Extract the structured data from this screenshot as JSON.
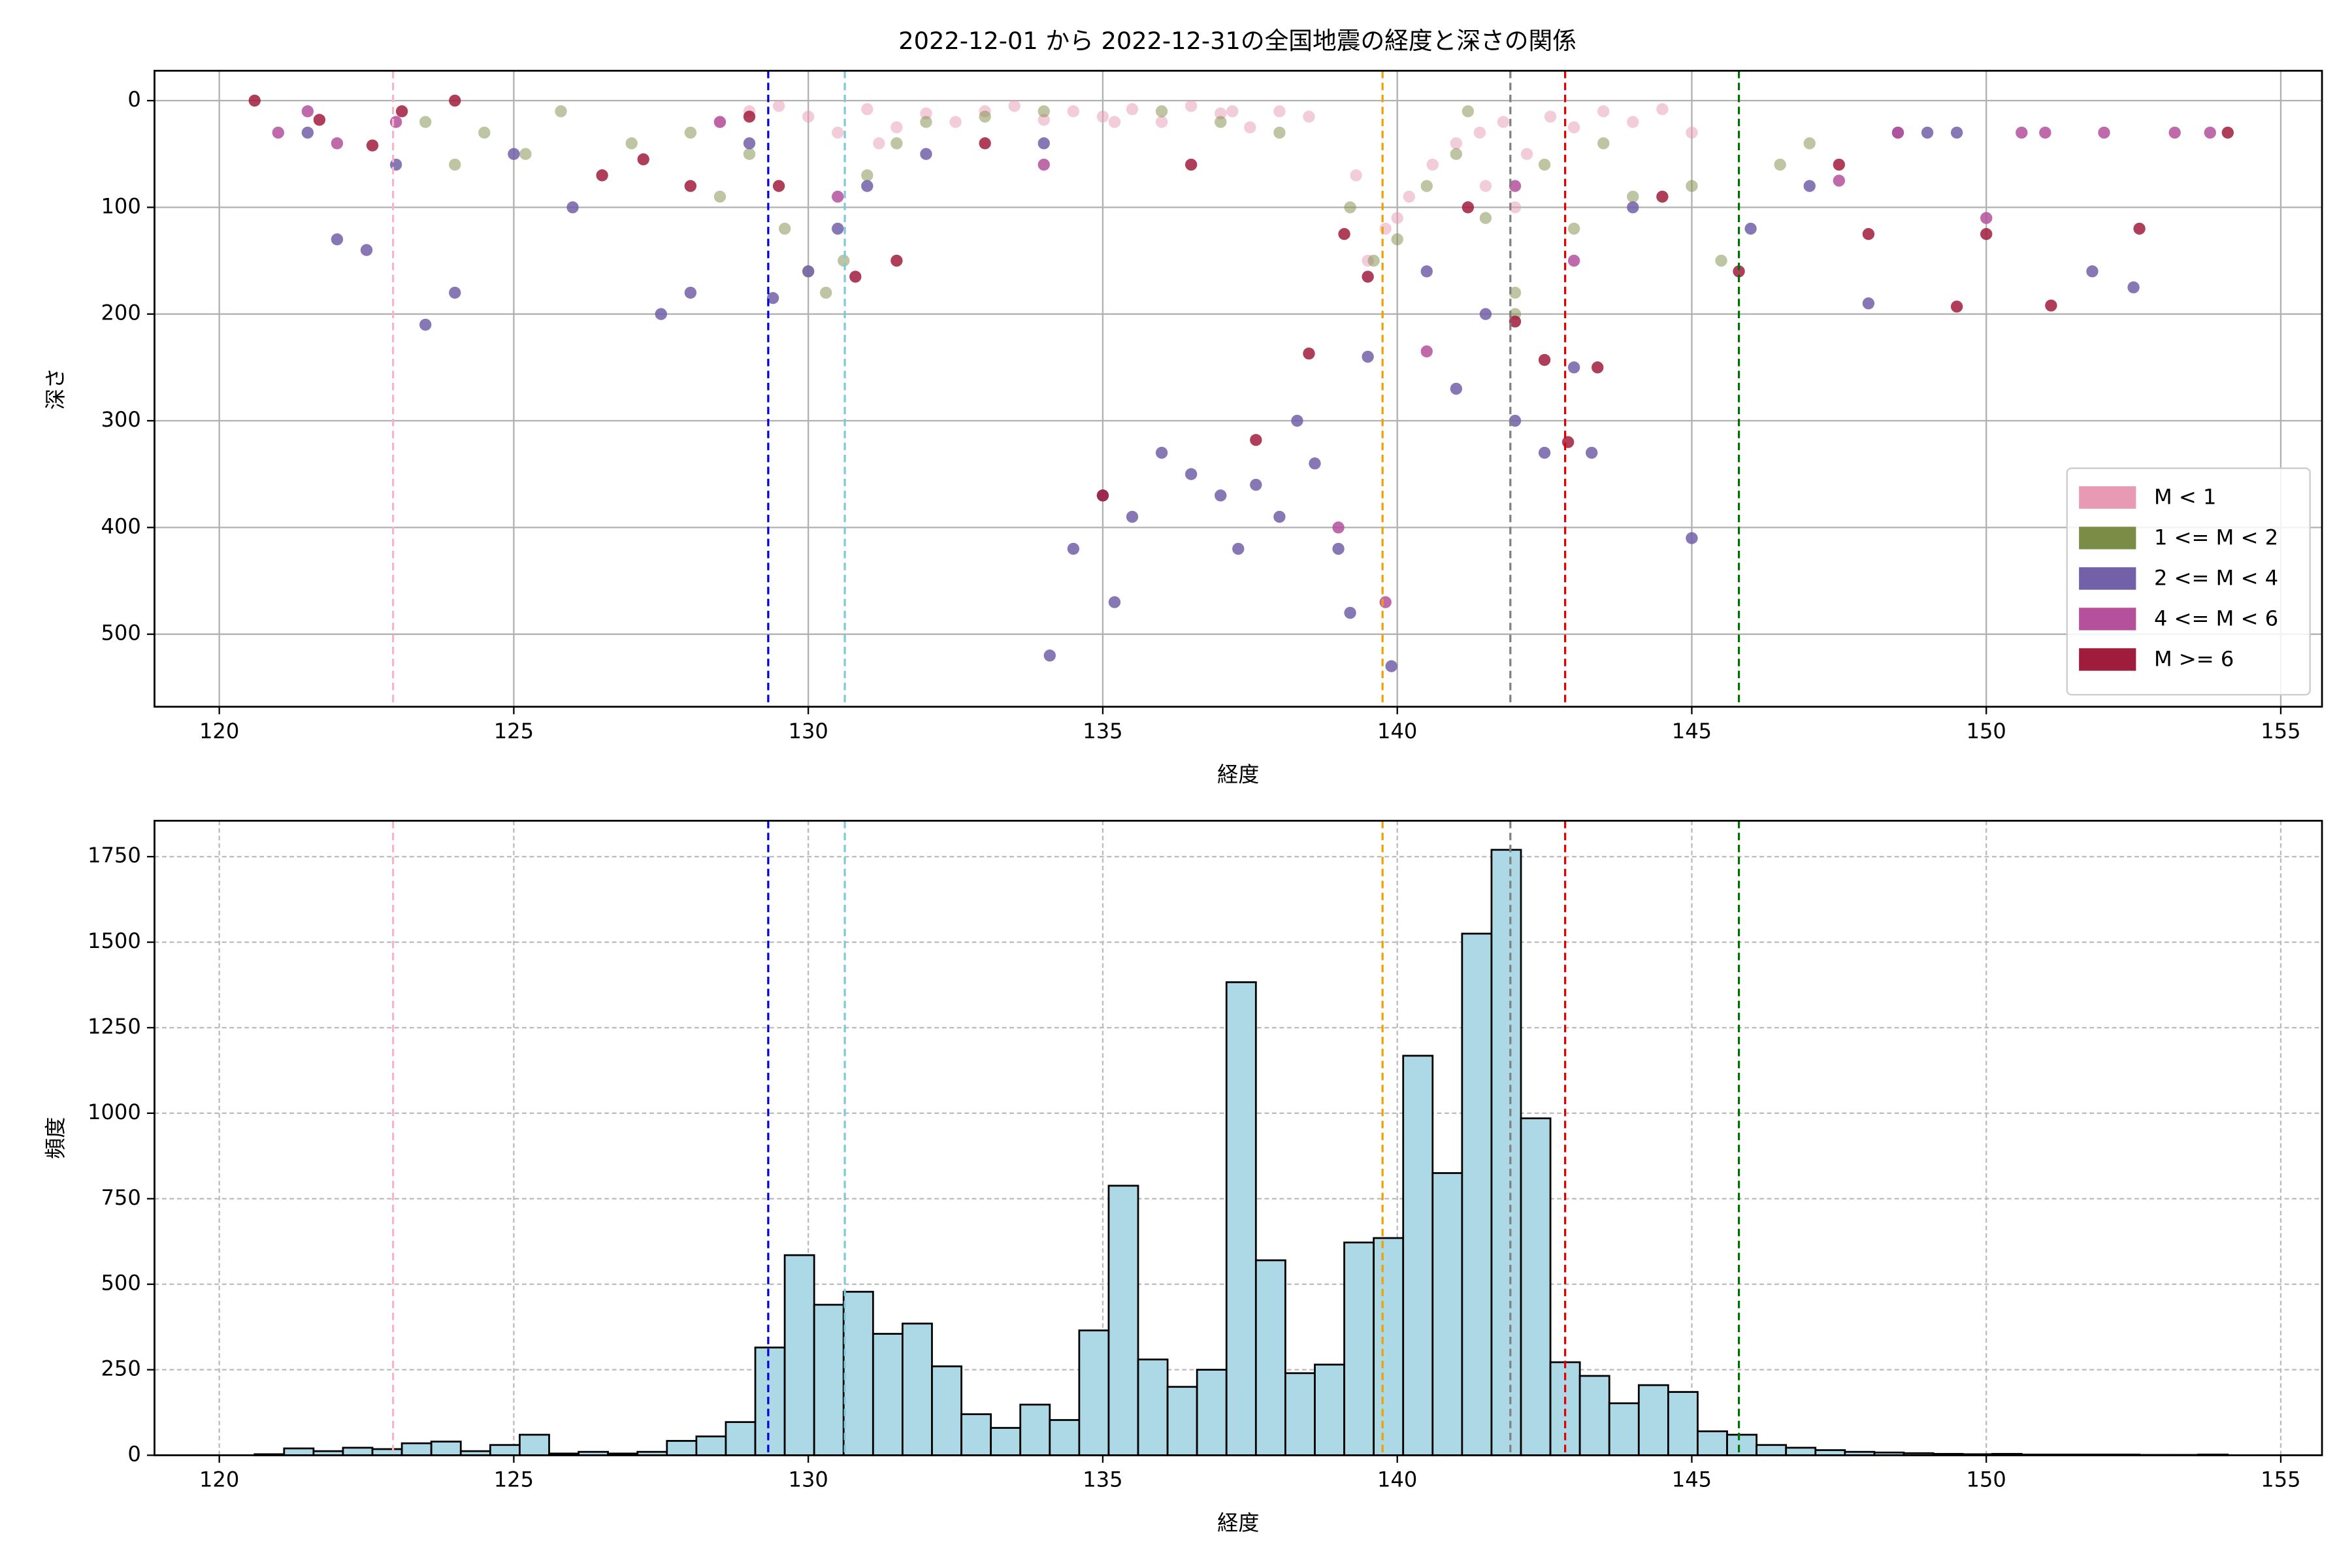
{
  "chart_data": [
    {
      "type": "scatter",
      "title": "2022-12-01 から 2022-12-31の全国地震の経度と深さの関係",
      "xlabel": "経度",
      "ylabel": "深さ",
      "xlim": [
        118.9,
        155.7
      ],
      "xticks": [
        120,
        125,
        130,
        135,
        140,
        145,
        150,
        155
      ],
      "ylim": [
        -28,
        568
      ],
      "yinverted": true,
      "yticks": [
        0,
        100,
        200,
        300,
        400,
        500
      ],
      "grid": true,
      "legend": "lower right",
      "vlines": [
        {
          "x": 122.95,
          "color": "#f4b6c8"
        },
        {
          "x": 129.32,
          "color": "#0000dd"
        },
        {
          "x": 130.62,
          "color": "#80c8dc"
        },
        {
          "x": 139.75,
          "color": "#f0a000"
        },
        {
          "x": 141.92,
          "color": "#808080"
        },
        {
          "x": 142.85,
          "color": "#e00000"
        },
        {
          "x": 145.8,
          "color": "#007000"
        }
      ],
      "series": [
        {
          "name": "M < 1",
          "color": "#e89ab4",
          "x": [
            128.5,
            129,
            129.5,
            130,
            130.5,
            131,
            131.5,
            132,
            132.5,
            133,
            133.5,
            134,
            134.5,
            135,
            135.5,
            136,
            136.5,
            137,
            137.5,
            138,
            138.5,
            139.3,
            139.8,
            140.2,
            140.6,
            141,
            141.4,
            141.8,
            142.2,
            142.6,
            143,
            143.5,
            144,
            144.5,
            145,
            139.5,
            140,
            141.5,
            142,
            137.2,
            135.2,
            131.2
          ],
          "values": [
            20,
            10,
            5,
            15,
            30,
            8,
            25,
            12,
            20,
            10,
            5,
            18,
            10,
            15,
            8,
            20,
            5,
            12,
            25,
            10,
            15,
            70,
            120,
            90,
            60,
            40,
            30,
            20,
            50,
            15,
            25,
            10,
            20,
            8,
            30,
            150,
            110,
            80,
            100,
            10,
            20,
            40
          ]
        },
        {
          "name": "1 <= M < 2",
          "color": "#7b8c46",
          "x": [
            123.5,
            124,
            124.5,
            125.2,
            125.8,
            127,
            128,
            128.5,
            129,
            129.6,
            130,
            130.3,
            130.6,
            131,
            131.5,
            132,
            133,
            134,
            136,
            137,
            138,
            139.2,
            139.6,
            140,
            140.5,
            141,
            141.5,
            142,
            142.5,
            143,
            143.5,
            144,
            145,
            145.5,
            146.5,
            147,
            142,
            141.2
          ],
          "values": [
            20,
            60,
            30,
            50,
            10,
            40,
            30,
            90,
            50,
            120,
            160,
            180,
            150,
            70,
            40,
            20,
            15,
            10,
            10,
            20,
            30,
            100,
            150,
            130,
            80,
            50,
            110,
            180,
            60,
            120,
            40,
            90,
            80,
            150,
            60,
            40,
            200,
            10
          ]
        },
        {
          "name": "2 <= M < 4",
          "color": "#7260a8",
          "x": [
            121.5,
            122,
            122.5,
            123,
            123.5,
            124,
            125,
            126,
            127.5,
            128,
            129,
            129.4,
            130,
            130.5,
            131,
            132,
            134,
            134.5,
            135,
            135.2,
            135.5,
            136,
            136.5,
            137,
            137.3,
            137.6,
            138,
            138.3,
            138.6,
            139,
            139.2,
            139.5,
            139.9,
            140.5,
            141,
            141.5,
            142,
            142.5,
            143,
            143.3,
            144,
            145,
            146,
            147,
            148,
            148.5,
            149,
            149.5,
            151.8,
            152.5,
            134.1
          ],
          "values": [
            30,
            130,
            140,
            60,
            210,
            180,
            50,
            100,
            200,
            180,
            40,
            185,
            160,
            120,
            80,
            50,
            40,
            420,
            370,
            470,
            390,
            330,
            350,
            370,
            420,
            360,
            390,
            300,
            340,
            420,
            480,
            240,
            530,
            160,
            270,
            200,
            300,
            330,
            250,
            330,
            100,
            410,
            120,
            80,
            190,
            30,
            30,
            30,
            160,
            175,
            520
          ]
        },
        {
          "name": "4 <= M < 6",
          "color": "#b4509c",
          "x": [
            121,
            121.5,
            122,
            123,
            128.5,
            130.5,
            134,
            139,
            139.8,
            140.5,
            142,
            143,
            147.5,
            148.5,
            150,
            150.6,
            151,
            152,
            153.2,
            153.8
          ],
          "values": [
            30,
            10,
            40,
            20,
            20,
            90,
            60,
            400,
            470,
            235,
            80,
            150,
            75,
            30,
            110,
            30,
            30,
            30,
            30,
            30
          ]
        },
        {
          "name": "M >= 6",
          "color": "#a01c3c",
          "x": [
            120.6,
            121.7,
            122.6,
            123.1,
            124,
            126.5,
            127.2,
            128,
            129,
            129.5,
            130.8,
            131.5,
            133,
            135,
            136.5,
            137.6,
            138.5,
            139.1,
            139.5,
            141.2,
            142,
            142.5,
            142.9,
            143.4,
            144.5,
            145.8,
            147.5,
            148,
            149.5,
            150,
            151.1,
            152.6,
            154.1
          ],
          "values": [
            0,
            18,
            42,
            10,
            0,
            70,
            55,
            80,
            15,
            80,
            165,
            150,
            40,
            370,
            60,
            318,
            237,
            125,
            165,
            100,
            207,
            243,
            320,
            250,
            90,
            160,
            60,
            125,
            193,
            125,
            192,
            120,
            30
          ]
        }
      ]
    },
    {
      "type": "histogram",
      "xlabel": "経度",
      "ylabel": "頻度",
      "xlim": [
        118.9,
        155.7
      ],
      "xticks": [
        120,
        125,
        130,
        135,
        140,
        145,
        150,
        155
      ],
      "ylim": [
        0,
        1855
      ],
      "yticks": [
        0,
        250,
        500,
        750,
        1000,
        1250,
        1500,
        1750
      ],
      "grid": true,
      "color": "#add8e6",
      "edgecolor": "#000000",
      "vlines": [
        {
          "x": 122.95,
          "color": "#f4b6c8"
        },
        {
          "x": 129.32,
          "color": "#0000dd"
        },
        {
          "x": 130.62,
          "color": "#80c8dc"
        },
        {
          "x": 139.75,
          "color": "#f0a000"
        },
        {
          "x": 141.92,
          "color": "#808080"
        },
        {
          "x": 142.85,
          "color": "#e00000"
        },
        {
          "x": 145.8,
          "color": "#007000"
        }
      ],
      "bins": [
        120.6,
        121.1,
        121.6,
        122.1,
        122.6,
        123.1,
        123.6,
        124.1,
        124.6,
        125.1,
        125.6,
        126.1,
        126.6,
        127.1,
        127.6,
        128.1,
        128.6,
        129.1,
        129.6,
        130.1,
        130.6,
        131.1,
        131.6,
        132.1,
        132.6,
        133.1,
        133.6,
        134.1,
        134.6,
        135.1,
        135.6,
        136.1,
        136.6,
        137.1,
        137.6,
        138.1,
        138.6,
        139.1,
        139.6,
        140.1,
        140.6,
        141.1,
        141.6,
        142.1,
        142.6,
        143.1,
        143.6,
        144.1,
        144.6,
        145.1,
        145.6,
        146.1,
        146.6,
        147.1,
        147.6,
        148.1,
        148.6,
        149.1,
        149.6,
        150.1,
        150.6,
        151.1,
        151.6,
        152.1,
        152.6,
        153.1,
        153.6,
        154.1
      ],
      "counts": [
        3,
        20,
        12,
        22,
        18,
        35,
        40,
        12,
        30,
        60,
        5,
        10,
        5,
        10,
        42,
        55,
        97,
        315,
        585,
        440,
        478,
        355,
        385,
        260,
        120,
        80,
        148,
        103,
        365,
        788,
        280,
        200,
        250,
        1383,
        570,
        240,
        265,
        622,
        635,
        1168,
        825,
        1525,
        1770,
        985,
        272,
        232,
        152,
        205,
        185,
        70,
        60,
        30,
        22,
        15,
        10,
        8,
        6,
        4,
        3,
        4,
        2,
        2,
        2,
        2,
        1,
        1,
        2
      ]
    }
  ]
}
